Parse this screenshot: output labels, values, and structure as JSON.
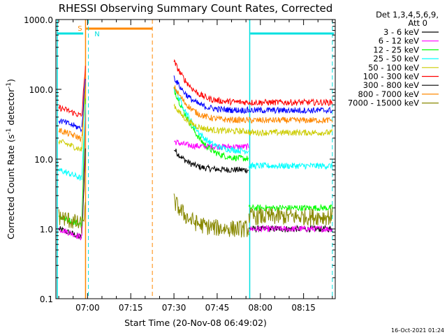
{
  "chart_data": {
    "type": "line",
    "title": "RHESSI Observing Summary Count Rates, Corrected",
    "xlabel": "Start Time (20-Nov-08 06:49:02)",
    "ylabel_main": "Corrected Count Rate (s",
    "ylabel_sup1": "-1",
    "ylabel_mid": " detector",
    "ylabel_sup2": "-1",
    "ylabel_end": ")",
    "yscale": "log",
    "ylim": [
      0.1,
      1000
    ],
    "xlim_min": [
      409,
      506
    ],
    "x_tick_minutes": [
      420,
      435,
      450,
      465,
      480,
      495
    ],
    "x_tick_labels": [
      "07:00",
      "07:15",
      "07:30",
      "07:45",
      "08:00",
      "08:15"
    ],
    "y_ticks": [
      0.1,
      1,
      10,
      100,
      1000
    ],
    "y_tick_labels": [
      "0.1",
      "1.0",
      "10.0",
      "100.0",
      "1000.0"
    ],
    "legend_header": [
      "Det 1,3,4,5,6,9,",
      "Att 0"
    ],
    "series": [
      {
        "name": "3 - 6 keV",
        "color": "#000000",
        "pre": 1.0,
        "peak": 15,
        "post_start": 14,
        "post_end": 7,
        "tail": 1.0
      },
      {
        "name": "6 - 12 keV",
        "color": "#ff00ff",
        "pre": 1.0,
        "peak": 60,
        "post_start": 18,
        "post_end": 15,
        "tail": 1.0
      },
      {
        "name": "12 - 25 keV",
        "color": "#00ff00",
        "pre": 1.5,
        "peak": 80,
        "post_start": 100,
        "post_end": 10,
        "tail": 2.0
      },
      {
        "name": "25 - 50 keV",
        "color": "#00ffff",
        "pre": 7.0,
        "peak": 60,
        "post_start": 110,
        "post_end": 13,
        "tail": 8.0
      },
      {
        "name": "50 - 100 keV",
        "color": "#cccc00",
        "pre": 18,
        "peak": 120,
        "post_start": 60,
        "post_end": 25,
        "tail": 24
      },
      {
        "name": "100 - 300 keV",
        "color": "#ff0000",
        "pre": 55,
        "peak": 240,
        "post_start": 250,
        "post_end": 65,
        "tail": 65
      },
      {
        "name": "300 - 800 keV",
        "color": "#000000",
        "pre": 1.0,
        "peak": 1.0,
        "post_start": 1.0,
        "post_end": 1.0,
        "tail": 1.0
      },
      {
        "name": "800 - 7000 keV",
        "color": "#ff8800",
        "pre": 26,
        "peak": 150,
        "post_start": 110,
        "post_end": 36,
        "tail": 36
      },
      {
        "name": "7000 - 15000 keV",
        "color": "#888800",
        "pre": 1.5,
        "peak": 2.0,
        "post_start": 2.5,
        "post_end": 1.0,
        "tail": 1.5
      }
    ],
    "blue_series": {
      "name": "blue",
      "color": "#0000ff",
      "pre": 36,
      "peak": 160,
      "post_start": 150,
      "post_end": 50,
      "tail": 50
    },
    "annotations": {
      "saa_label": "S",
      "night_label": "N",
      "night_bars_min": [
        [
          409.5,
          418.5
        ],
        [
          476.5,
          505.5
        ]
      ],
      "saa_bar_min": [
        419.5,
        442.5
      ],
      "night_lines_min": [
        418.7,
        476.3,
        505.0
      ],
      "saa_lines_min": [
        419.3,
        442.5
      ],
      "data_gaps_min": [
        [
          421,
          449.5
        ]
      ]
    },
    "footer_date": "16-Oct-2021 01:24"
  }
}
